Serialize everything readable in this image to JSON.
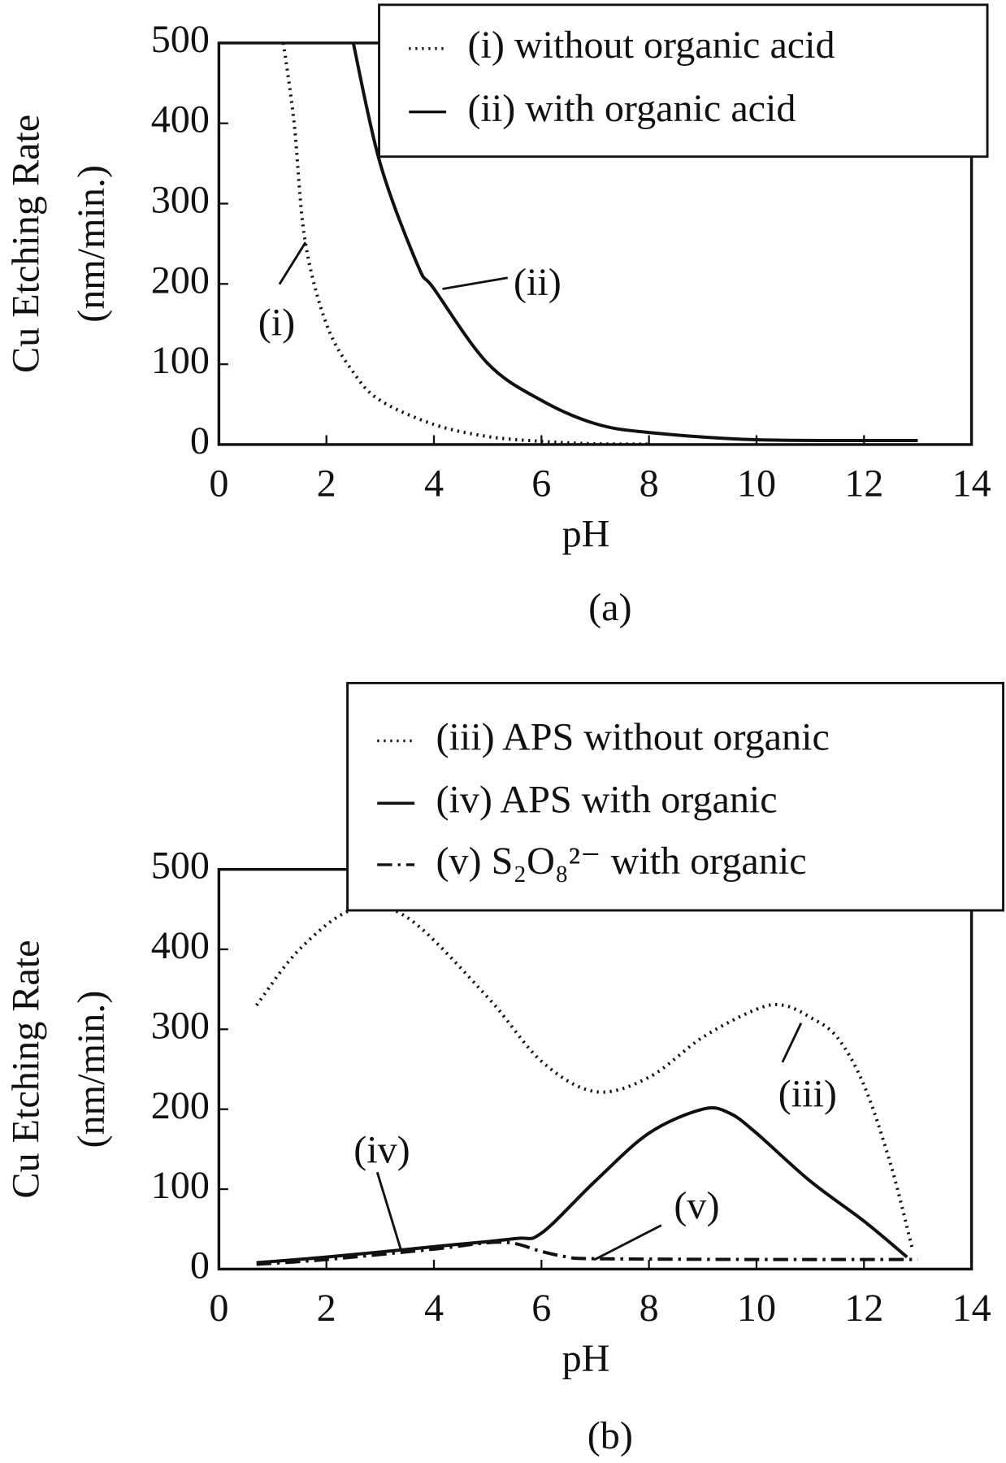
{
  "chart_data": [
    {
      "type": "line",
      "xlabel": "pH",
      "ylabel": [
        "Cu Etching Rate",
        "(nm/min.)"
      ],
      "caption": "(a)",
      "xlim": [
        0,
        14
      ],
      "xticks": [
        0,
        2,
        4,
        6,
        8,
        10,
        12,
        14
      ],
      "ylim": [
        0,
        500
      ],
      "yticks": [
        0,
        100,
        200,
        300,
        400,
        500
      ],
      "legend": "upper right",
      "series": [
        {
          "name": "(i) without organic acid",
          "color": "#111111",
          "style": "dotted",
          "x": [
            1.2,
            1.4,
            1.6,
            2,
            2.5,
            3,
            4,
            5,
            6,
            7,
            8
          ],
          "values": [
            500,
            400,
            255,
            150,
            90,
            55,
            25,
            10,
            4,
            1,
            0.5
          ]
        },
        {
          "name": "(ii) with organic acid",
          "color": "#111111",
          "style": "solid",
          "x": [
            2.5,
            3,
            3.7,
            4,
            5,
            6,
            7,
            8,
            10,
            13
          ],
          "values": [
            500,
            350,
            223,
            194,
            101,
            55,
            26,
            15,
            6,
            5
          ]
        }
      ],
      "annotations": [
        {
          "text": "(i)"
        },
        {
          "text": "(ii)"
        }
      ]
    },
    {
      "type": "line",
      "xlabel": "pH",
      "ylabel": [
        "Cu Etching Rate",
        "(nm/min.)"
      ],
      "caption": "(b)",
      "xlim": [
        0,
        14
      ],
      "xticks": [
        0,
        2,
        4,
        6,
        8,
        10,
        12,
        14
      ],
      "ylim": [
        0,
        500
      ],
      "yticks": [
        0,
        100,
        200,
        300,
        400,
        500
      ],
      "legend": "upper right",
      "series": [
        {
          "name": "(iii) APS without organic",
          "color": "#111111",
          "style": "dotted",
          "x": [
            0.7,
            1.5,
            2.5,
            3.5,
            5,
            6,
            7,
            8,
            9,
            10,
            10.5,
            11,
            11.5,
            12,
            12.5,
            12.9
          ],
          "values": [
            330,
            400,
            450,
            440,
            340,
            260,
            222,
            240,
            290,
            325,
            330,
            315,
            290,
            230,
            130,
            25
          ]
        },
        {
          "name": "(iv) APS with organic",
          "color": "#111111",
          "style": "solid",
          "x": [
            0.7,
            2,
            4,
            5.5,
            6,
            7,
            8,
            9,
            9.5,
            10,
            11,
            12,
            12.8
          ],
          "values": [
            8,
            15,
            28,
            38,
            45,
            110,
            170,
            200,
            195,
            170,
            110,
            60,
            15
          ]
        },
        {
          "name": "(v) S₂O₈²⁻ with organic",
          "color": "#111111",
          "style": "dashdot",
          "x": [
            0.7,
            2,
            4,
            5,
            5.5,
            6,
            6.5,
            7,
            10,
            13
          ],
          "values": [
            6,
            12,
            25,
            33,
            32,
            22,
            15,
            13,
            12,
            12
          ]
        }
      ],
      "annotations": [
        {
          "text": "(iv)"
        },
        {
          "text": "(v)"
        },
        {
          "text": "(iii)"
        }
      ]
    }
  ]
}
